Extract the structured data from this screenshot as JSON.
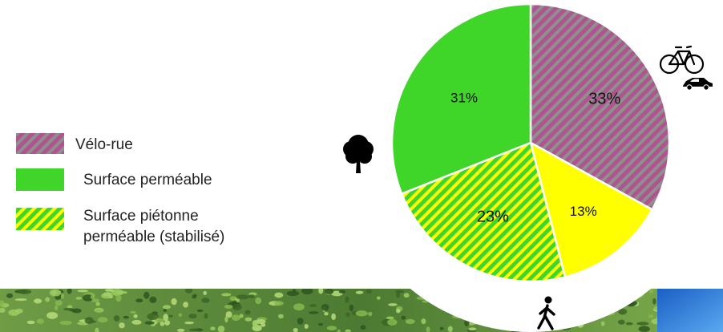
{
  "colors": {
    "purple": "#b0548f",
    "grey": "#8f8f8f",
    "green": "#3fd629",
    "yellow": "#ffff00",
    "foliage_dark": "#4c7a32",
    "foliage_light": "#8fbf57",
    "sky": "#2d86e6"
  },
  "legend": {
    "items": [
      {
        "label": "Vélo-rue",
        "pattern": "purple-grey-hatch"
      },
      {
        "label": "Surface perméable",
        "pattern": "solid-green"
      },
      {
        "label": "Surface piétonne",
        "label_line2": "perméable (stabilisé)",
        "pattern": "green-yellow-hatch"
      }
    ]
  },
  "icons": {
    "bike": "bicycle-icon",
    "car": "car-icon",
    "tree": "tree-icon",
    "pedestrian": "pedestrian-icon"
  },
  "chart_data": {
    "type": "pie",
    "start_angle_deg": 0,
    "direction": "clockwise",
    "slices": [
      {
        "label": "33%",
        "value": 33,
        "pattern": "purple-grey-hatch"
      },
      {
        "label": "13%",
        "value": 13,
        "pattern": "solid-yellow"
      },
      {
        "label": "23%",
        "value": 23,
        "pattern": "green-yellow-hatch"
      },
      {
        "label": "31%",
        "value": 31,
        "pattern": "solid-green"
      }
    ]
  }
}
